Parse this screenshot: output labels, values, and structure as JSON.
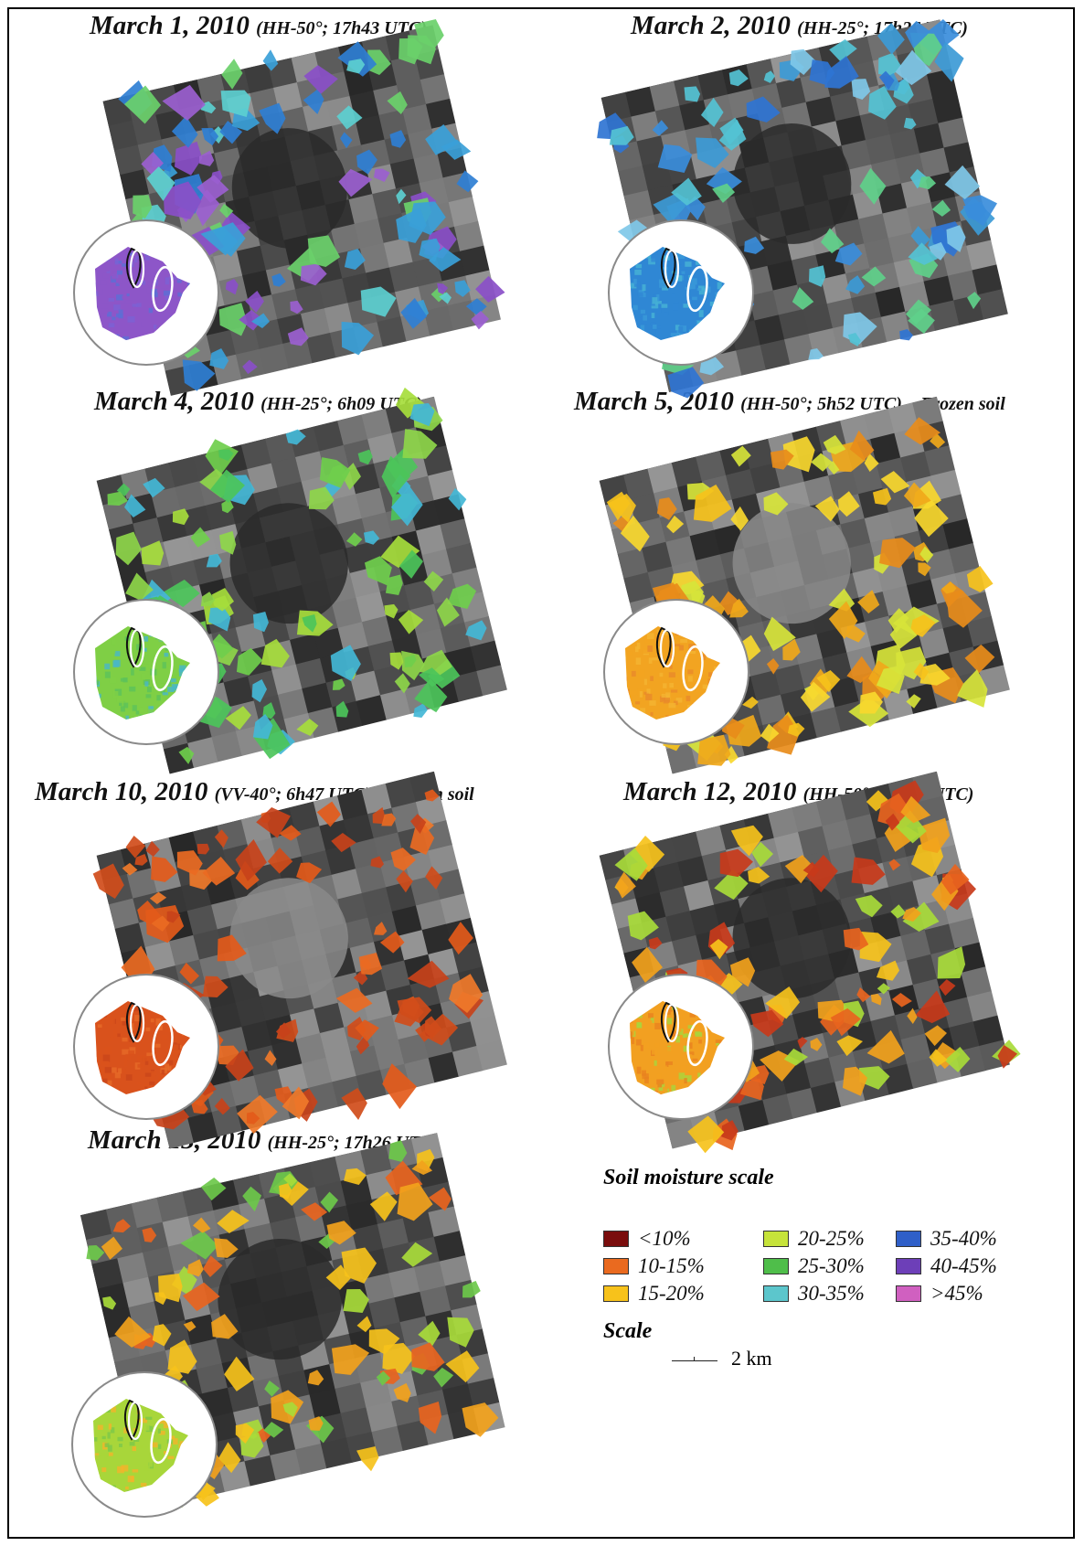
{
  "panels": [
    {
      "id": "mar1",
      "date": "March 1, 2010",
      "details": "(HH-50°; 17h43 UTC)",
      "palette": [
        "#9b5fd0",
        "#8a4fc8",
        "#3aa0d8",
        "#2f7fd4",
        "#5ccfd0",
        "#6ad06a"
      ],
      "fill": 0.55,
      "inset_palette": [
        "#8d56c8",
        "#7c62d4",
        "#5b6fd6"
      ],
      "ellipse_color": "#ffffff",
      "lasso_color": "#111111"
    },
    {
      "id": "mar2",
      "date": "March 2, 2010",
      "details": "(HH-25°; 17h26 UTC)",
      "palette": [
        "#3a8ddb",
        "#2f74d2",
        "#54c2d4",
        "#7fc8e8",
        "#5fd08a",
        "#3c9ad6"
      ],
      "fill": 0.45,
      "inset_palette": [
        "#2f87d4",
        "#3a9ad8",
        "#47b3d4"
      ],
      "ellipse_color": "#ffffff",
      "lasso_color": "#111111"
    },
    {
      "id": "mar4",
      "date": "March 4, 2010",
      "details": "(HH-25°; 6h09 UTC)",
      "palette": [
        "#6fce4c",
        "#8ed64a",
        "#4cc45a",
        "#43b7d6",
        "#a6dd3c"
      ],
      "fill": 0.5,
      "inset_palette": [
        "#7fcf45",
        "#5cc25a",
        "#49b7c8"
      ],
      "ellipse_color": "#ffffff",
      "lasso_color": "#111111"
    },
    {
      "id": "mar5",
      "date": "March 5, 2010",
      "details": "(HH-50°; 5h52 UTC) – Frozen soil",
      "palette": [
        "#f6c21b",
        "#f0a81a",
        "#f9d82e",
        "#e88c1a",
        "#d7e43a"
      ],
      "fill": 0.5,
      "inset_palette": [
        "#f2a421",
        "#f4b432",
        "#e88a2a"
      ],
      "ellipse_color": "#ffffff",
      "lasso_color": "#111111"
    },
    {
      "id": "mar10",
      "date": "March 10, 2010",
      "details": "(VV-40°; 6h47 UTC) – Frozen soil",
      "palette": [
        "#e35a1a",
        "#ea6a22",
        "#d04c1a",
        "#f07a2a",
        "#c8421a"
      ],
      "fill": 0.5,
      "inset_palette": [
        "#d9521c",
        "#c9461a",
        "#e66a28"
      ],
      "ellipse_color": "#ffffff",
      "lasso_color": "#111111"
    },
    {
      "id": "mar12",
      "date": "March 12, 2010",
      "details": "(HH-50°; 17h43 UTC)",
      "palette": [
        "#e8641e",
        "#f2a21c",
        "#f6c21b",
        "#c83a1a",
        "#a8db3a"
      ],
      "fill": 0.45,
      "inset_palette": [
        "#f2a021",
        "#e8821f",
        "#a9d63c"
      ],
      "ellipse_color": "#ffffff",
      "lasso_color": "#111111"
    },
    {
      "id": "mar13",
      "date": "March 13, 2010",
      "details": "(HH-25°; 17h26 UTC)",
      "palette": [
        "#e8641e",
        "#f2a21c",
        "#a8db3a",
        "#6cc84a",
        "#f6c21b"
      ],
      "fill": 0.45,
      "inset_palette": [
        "#a8d63a",
        "#f2b42a",
        "#7cc84a"
      ],
      "ellipse_color": "#ffffff",
      "lasso_color": "#111111"
    }
  ],
  "legend": {
    "title": "Soil moisture scale",
    "items": [
      {
        "label": "<10%",
        "color": "#7a0d0d"
      },
      {
        "label": "10-15%",
        "color": "#ea6a1f"
      },
      {
        "label": "15-20%",
        "color": "#f7c21b"
      },
      {
        "label": "20-25%",
        "color": "#c6e33a"
      },
      {
        "label": "25-30%",
        "color": "#4fbe4a"
      },
      {
        "label": "30-35%",
        "color": "#5cc6cc"
      },
      {
        "label": "35-40%",
        "color": "#2f5fc8"
      },
      {
        "label": "40-45%",
        "color": "#6d3fb8"
      },
      {
        "label": ">45%",
        "color": "#d060c0"
      }
    ],
    "scale_title": "Scale",
    "scale_value": "2 km"
  }
}
